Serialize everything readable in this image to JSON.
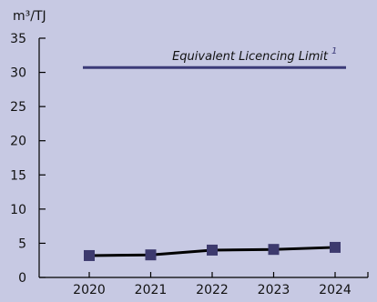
{
  "chart_data": {
    "type": "line",
    "ylabel": "m³/TJ",
    "xlabel": "",
    "categories": [
      "2020",
      "2021",
      "2022",
      "2023",
      "2024"
    ],
    "series": [
      {
        "values": [
          3.2,
          3.3,
          4.0,
          4.1,
          4.4
        ]
      }
    ],
    "ylim": [
      0,
      35
    ],
    "yticks": [
      0,
      5,
      10,
      15,
      20,
      25,
      30,
      35
    ],
    "reference_line": {
      "label": "Equivalent Licencing Limit",
      "marker": "1",
      "value": 30.7
    },
    "grid": false,
    "legend": "none",
    "colors": {
      "background": "#c7c9e3",
      "series_line": "#000000",
      "marker": "#3d3a6e",
      "reference_line": "#3b3a78",
      "axis": "#000000"
    }
  }
}
